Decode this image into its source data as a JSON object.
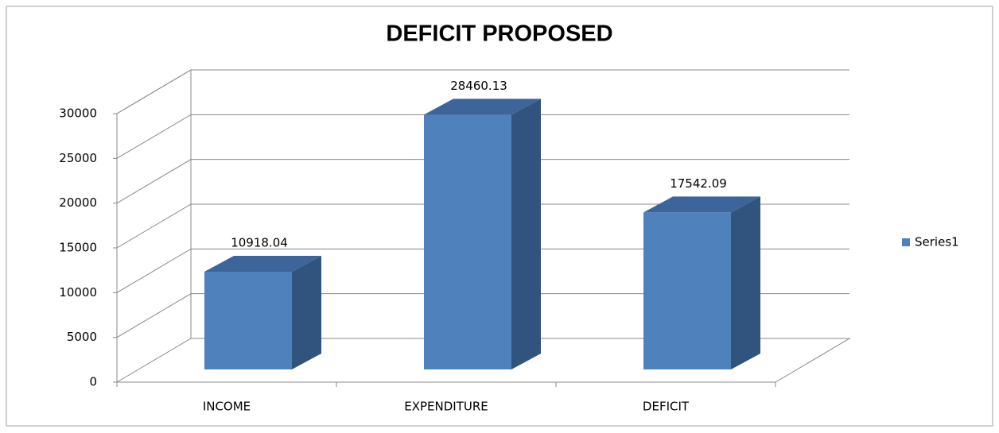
{
  "chart_data": {
    "type": "bar3d",
    "title": "DEFICIT PROPOSED",
    "categories": [
      "INCOME",
      "EXPENDITURE",
      "DEFICIT"
    ],
    "series": [
      {
        "name": "Series1",
        "color": "#4f81bd",
        "values": [
          10918.04,
          28460.13,
          17542.09
        ]
      }
    ],
    "ylim": [
      0,
      30000
    ],
    "yticks": [
      0,
      5000,
      10000,
      15000,
      20000,
      25000,
      30000
    ],
    "grid": true,
    "legend": "right",
    "data_labels": true
  }
}
